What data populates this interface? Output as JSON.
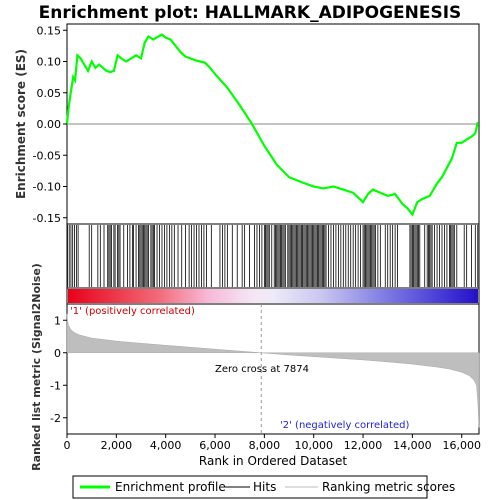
{
  "chart_data": {
    "type": "line",
    "title": "Enrichment plot: HALLMARK_ADIPOGENESIS",
    "xlabel": "Rank in Ordered Dataset",
    "ylabel_top": "Enrichment score (ES)",
    "ylabel_bottom": "Ranked list metric (Signal2Noise)",
    "xlim": [
      0,
      16700
    ],
    "xticks": [
      0,
      2000,
      4000,
      6000,
      8000,
      10000,
      12000,
      14000,
      16000
    ],
    "xtick_labels": [
      "0",
      "2,000",
      "4,000",
      "6,000",
      "8,000",
      "10,000",
      "12,000",
      "14,000",
      "16,000"
    ],
    "es_ylim": [
      -0.16,
      0.16
    ],
    "es_yticks": [
      -0.15,
      -0.1,
      -0.05,
      0.0,
      0.05,
      0.1,
      0.15
    ],
    "es_ytick_labels": [
      "-0.15",
      "-0.10",
      "-0.05",
      "0.00",
      "0.05",
      "0.10",
      "0.15"
    ],
    "metric_ylim": [
      -2.5,
      1.5
    ],
    "metric_yticks": [
      -2,
      -1,
      0,
      1
    ],
    "metric_ytick_labels": [
      "-2",
      "-1",
      "0",
      "1"
    ],
    "zero_cross": 7874,
    "zero_cross_label": "Zero cross at 7874",
    "pos_label": "'1' (positively correlated)",
    "neg_label": "'2' (negatively correlated)",
    "grid": false,
    "legend_position": "bottom",
    "series": [
      {
        "name": "Enrichment profile",
        "color": "#00ff00",
        "x": [
          0,
          60,
          150,
          250,
          330,
          420,
          550,
          700,
          850,
          1000,
          1150,
          1300,
          1450,
          1600,
          1750,
          1900,
          2050,
          2200,
          2400,
          2600,
          2800,
          3000,
          3150,
          3300,
          3500,
          3700,
          3850,
          4000,
          4200,
          4400,
          4600,
          4800,
          5000,
          5200,
          5400,
          5600,
          5800,
          6000,
          6500,
          7000,
          7500,
          8000,
          8500,
          9000,
          9500,
          10000,
          10400,
          10800,
          11200,
          11600,
          12000,
          12200,
          12400,
          12700,
          13000,
          13300,
          13600,
          13800,
          14000,
          14200,
          14400,
          14700,
          15000,
          15200,
          15400,
          15600,
          15800,
          16000,
          16200,
          16400,
          16550,
          16650
        ],
        "y": [
          0.0,
          0.025,
          0.05,
          0.075,
          0.07,
          0.11,
          0.105,
          0.095,
          0.085,
          0.1,
          0.09,
          0.095,
          0.09,
          0.085,
          0.083,
          0.085,
          0.11,
          0.105,
          0.1,
          0.105,
          0.11,
          0.105,
          0.13,
          0.14,
          0.135,
          0.14,
          0.143,
          0.138,
          0.135,
          0.125,
          0.115,
          0.108,
          0.105,
          0.102,
          0.1,
          0.098,
          0.09,
          0.08,
          0.058,
          0.03,
          0.0,
          -0.035,
          -0.065,
          -0.085,
          -0.093,
          -0.1,
          -0.103,
          -0.1,
          -0.105,
          -0.11,
          -0.125,
          -0.112,
          -0.105,
          -0.11,
          -0.115,
          -0.112,
          -0.128,
          -0.135,
          -0.145,
          -0.125,
          -0.12,
          -0.115,
          -0.095,
          -0.085,
          -0.07,
          -0.055,
          -0.03,
          -0.03,
          -0.025,
          -0.02,
          -0.015,
          0.003
        ]
      },
      {
        "name": "Hits",
        "color": "#000000",
        "positions": [
          20,
          90,
          160,
          230,
          300,
          380,
          450,
          900,
          1000,
          1250,
          1350,
          1500,
          1650,
          1700,
          1750,
          1800,
          1900,
          1950,
          2050,
          2100,
          2150,
          2300,
          2450,
          2550,
          2650,
          2700,
          2800,
          2900,
          2950,
          3000,
          3050,
          3100,
          3150,
          3200,
          3250,
          3300,
          3400,
          3450,
          3500,
          3550,
          3650,
          3750,
          3850,
          3950,
          4050,
          4150,
          4250,
          4350,
          4500,
          4650,
          4800,
          4950,
          5050,
          5150,
          5250,
          5350,
          5450,
          5550,
          5650,
          5850,
          6200,
          6300,
          6400,
          6500,
          6700,
          6900,
          7100,
          7200,
          7400,
          7600,
          7700,
          7800,
          7900,
          8000,
          8050,
          8100,
          8150,
          8200,
          8300,
          8400,
          8450,
          8500,
          8550,
          8600,
          8650,
          8700,
          8750,
          8800,
          8850,
          8950,
          9000,
          9050,
          9100,
          9150,
          9200,
          9250,
          9300,
          9350,
          9400,
          9450,
          9500,
          9550,
          9600,
          9650,
          9700,
          9750,
          9800,
          9850,
          9900,
          9950,
          10000,
          10050,
          10100,
          10150,
          10200,
          10250,
          10300,
          10350,
          10400,
          10450,
          10500,
          10600,
          10700,
          10800,
          10900,
          11000,
          11100,
          11200,
          11300,
          11400,
          11500,
          11600,
          11700,
          11800,
          11900,
          12000,
          12050,
          12100,
          12150,
          12200,
          12250,
          12300,
          12350,
          12400,
          12450,
          12500,
          12600,
          12700,
          12900,
          13000,
          13100,
          13200,
          13300,
          13400,
          13900,
          13950,
          14000,
          14050,
          14100,
          14150,
          14200,
          14250,
          14300,
          14500,
          14600,
          14650,
          14700,
          14750,
          14800,
          14900,
          15000,
          15100,
          15200,
          15300,
          15400,
          15500,
          15550,
          15600,
          15650,
          15700,
          15800,
          16100,
          16200,
          16400,
          16550,
          16650
        ]
      },
      {
        "name": "Ranking metric scores",
        "color": "#bebebe",
        "x": [
          0,
          20,
          60,
          150,
          300,
          500,
          1000,
          2000,
          3000,
          4000,
          5000,
          6000,
          7000,
          7874,
          9000,
          10000,
          11000,
          12000,
          13000,
          14000,
          15000,
          15500,
          16000,
          16300,
          16500,
          16600,
          16650,
          16700
        ],
        "y": [
          1.2,
          1.0,
          0.85,
          0.72,
          0.62,
          0.55,
          0.45,
          0.36,
          0.29,
          0.23,
          0.17,
          0.11,
          0.05,
          0.0,
          -0.07,
          -0.12,
          -0.17,
          -0.22,
          -0.28,
          -0.35,
          -0.44,
          -0.5,
          -0.6,
          -0.7,
          -0.85,
          -1.0,
          -1.5,
          -2.3
        ]
      }
    ]
  }
}
